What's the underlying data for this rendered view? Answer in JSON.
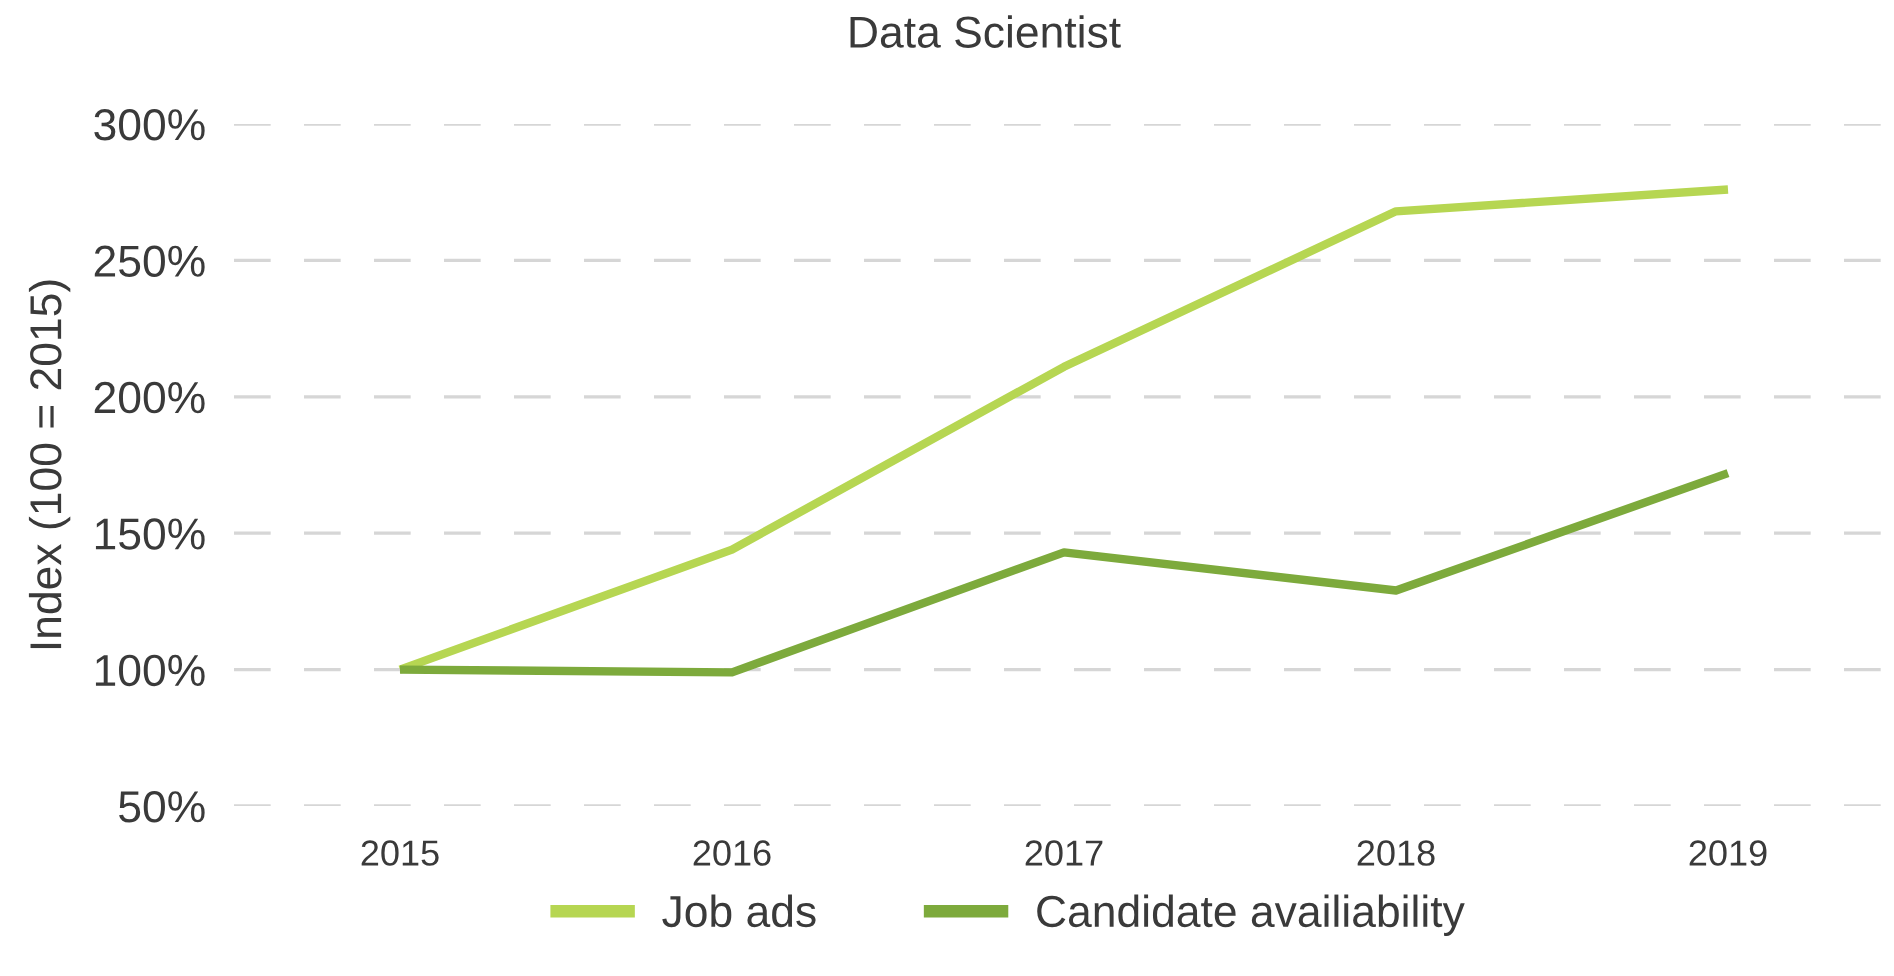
{
  "chart_data": {
    "type": "line",
    "title": "Data Scientist",
    "ylabel": "Index (100 = 2015)",
    "categories": [
      "2015",
      "2016",
      "2017",
      "2018",
      "2019"
    ],
    "series": [
      {
        "name": "Job ads",
        "color": "#b6d652",
        "values": [
          100,
          144,
          211,
          268,
          276
        ]
      },
      {
        "name": "Candidate availiability",
        "color": "#7daa3c",
        "values": [
          100,
          99,
          143,
          129,
          172
        ]
      }
    ],
    "ylim": [
      50,
      300
    ],
    "yticks": [
      {
        "value": 50,
        "label": "50%"
      },
      {
        "value": 100,
        "label": "100%"
      },
      {
        "value": 150,
        "label": "150%"
      },
      {
        "value": 200,
        "label": "200%"
      },
      {
        "value": 250,
        "label": "250%"
      },
      {
        "value": 300,
        "label": "300%"
      }
    ],
    "grid": "y",
    "legend": "bottom",
    "marker": "none",
    "line_style": "solid"
  }
}
